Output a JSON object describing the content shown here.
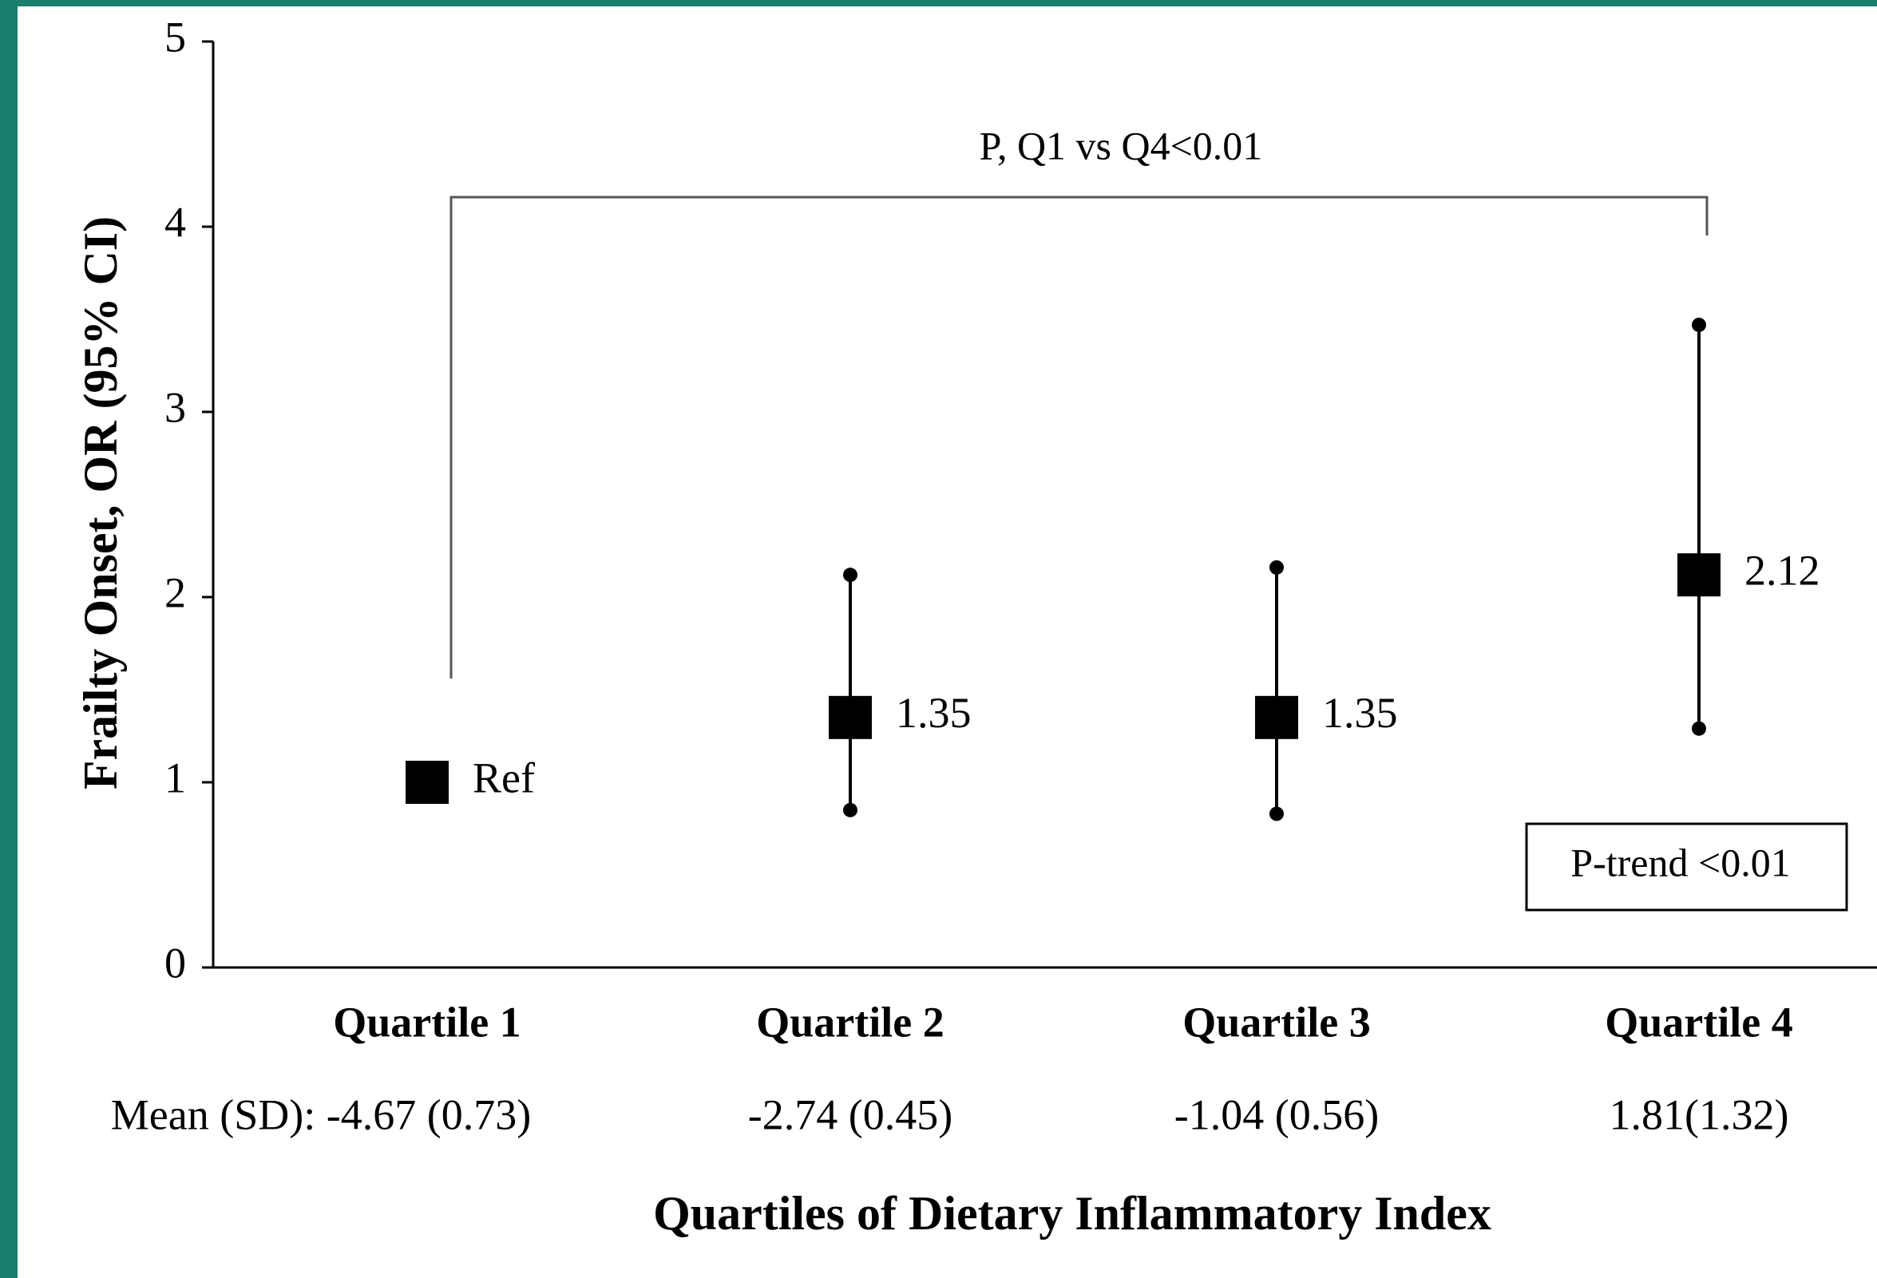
{
  "chart_data": {
    "type": "errorbar",
    "y_label": "Frailty Onset, OR (95% CI)",
    "x_label": "Quartiles of Dietary Inflammatory Index",
    "categories": [
      "Quartile 1",
      "Quartile 2",
      "Quartile 3",
      "Quartile 4"
    ],
    "subcategories": [
      "Mean (SD): -4.67 (0.73)",
      "-2.74 (0.45)",
      "-1.04 (0.56)",
      "1.81(1.32)"
    ],
    "values": [
      1,
      1.35,
      1.35,
      2.12
    ],
    "value_labels": [
      "Ref",
      "1.35",
      "1.35",
      "2.12"
    ],
    "lower": [
      null,
      0.85,
      0.83,
      1.29
    ],
    "upper": [
      null,
      2.12,
      2.16,
      3.47
    ],
    "color": "#000000",
    "ylim": [
      0,
      5
    ],
    "yticks": [
      0,
      1,
      2,
      3,
      4,
      5
    ],
    "annotations": [
      "P, Q1 vs Q4<0.01",
      "P-trend <0.01"
    ]
  }
}
